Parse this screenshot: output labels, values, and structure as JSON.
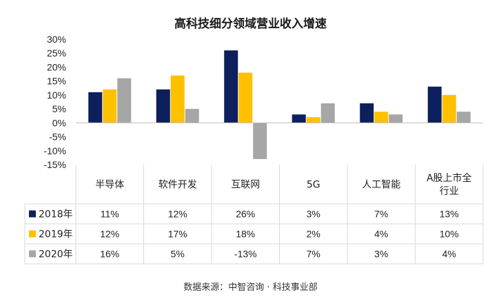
{
  "chart_data": {
    "type": "bar",
    "title": "高科技细分领域营业收入增速",
    "categories": [
      "半导体",
      "软件开发",
      "互联网",
      "5G",
      "人工智能",
      "A股上市全行业"
    ],
    "categories_display": [
      [
        "半导体"
      ],
      [
        "软件开发"
      ],
      [
        "互联网"
      ],
      [
        "5G"
      ],
      [
        "人工智能"
      ],
      [
        "A股上市全",
        "行业"
      ]
    ],
    "series": [
      {
        "name": "2018年",
        "color": "#0d1f5c",
        "values": [
          11,
          12,
          26,
          3,
          7,
          13
        ],
        "labels": [
          "11%",
          "12%",
          "26%",
          "3%",
          "7%",
          "13%"
        ]
      },
      {
        "name": "2019年",
        "color": "#ffc000",
        "values": [
          12,
          17,
          18,
          2,
          4,
          10
        ],
        "labels": [
          "12%",
          "17%",
          "18%",
          "2%",
          "4%",
          "10%"
        ]
      },
      {
        "name": "2020年",
        "color": "#a6a6a6",
        "values": [
          16,
          5,
          -13,
          7,
          3,
          4
        ],
        "labels": [
          "16%",
          "5%",
          "-13%",
          "7%",
          "3%",
          "4%"
        ]
      }
    ],
    "y_ticks": [
      30,
      25,
      20,
      15,
      10,
      5,
      0,
      -5,
      -10,
      -15
    ],
    "y_tick_labels": [
      "30%",
      "25%",
      "20%",
      "15%",
      "10%",
      "5%",
      "0%",
      "-5%",
      "-10%",
      "-15%"
    ],
    "ylim": [
      -15,
      30
    ],
    "xlabel": "",
    "ylabel": "",
    "grid": false,
    "legend": "data-table"
  },
  "source": "数据来源：中智咨询 · 科技事业部"
}
